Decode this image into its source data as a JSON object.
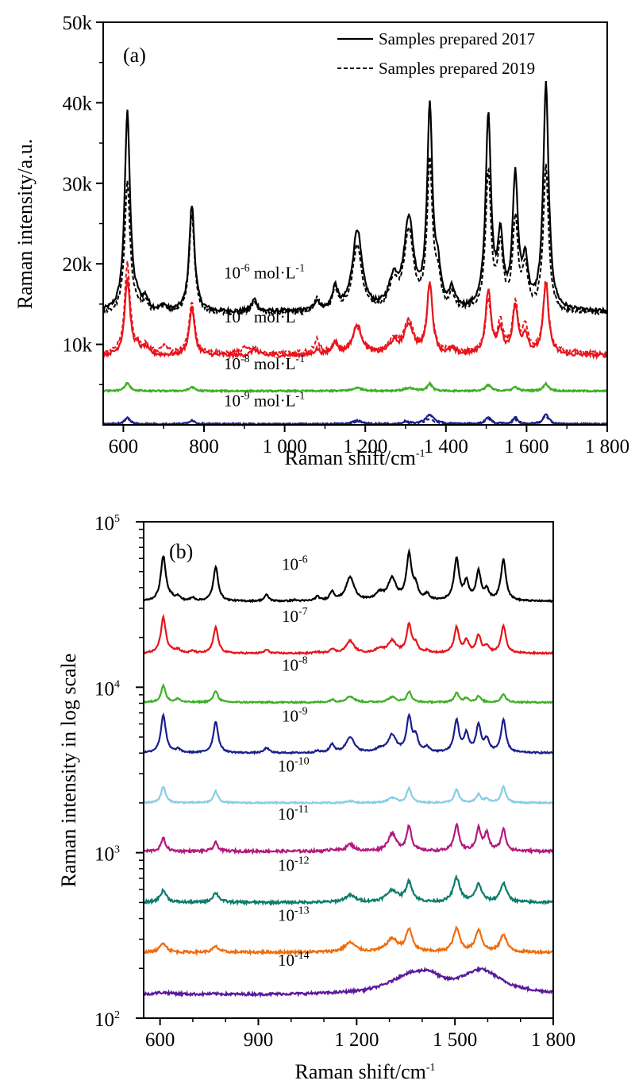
{
  "chart_data": [
    {
      "id": "a",
      "type": "line",
      "panel_label": "(a)",
      "xlabel": "Raman shift/cm",
      "xlabel_sup": "-1",
      "ylabel": "Raman intensity/a.u.",
      "xlim": [
        550,
        1800
      ],
      "ylim": [
        0,
        50000
      ],
      "x_ticks": [
        600,
        800,
        1000,
        1200,
        1400,
        1600,
        1800
      ],
      "x_tick_labels": [
        "600",
        "800",
        "1 000",
        "1 200",
        "1 400",
        "1 600",
        "1 800"
      ],
      "y_ticks": [
        10000,
        20000,
        30000,
        40000,
        50000
      ],
      "y_tick_labels": [
        "10k",
        "20k",
        "30k",
        "40k",
        "50k"
      ],
      "legend": {
        "position": "top-right",
        "entries": [
          {
            "label": "Samples prepared 2017",
            "style": "solid"
          },
          {
            "label": "Samples prepared 2019",
            "style": "dashed"
          }
        ]
      },
      "series": [
        {
          "name": "10-6 mol·L-1",
          "annotation_base": "10",
          "annotation_exp": "-6",
          "annotation_unit": " mol·L",
          "annotation_unit_exp": "-1",
          "color": "#000000",
          "baseline_2017": 14000,
          "baseline_2019": 13800,
          "peaks_2017": [
            [
              610,
              38800
            ],
            [
              635,
              14800
            ],
            [
              655,
              15400
            ],
            [
              700,
              14600
            ],
            [
              770,
              27200
            ],
            [
              925,
              15500
            ],
            [
              1080,
              15200
            ],
            [
              1125,
              16800
            ],
            [
              1180,
              24000
            ],
            [
              1270,
              17500
            ],
            [
              1308,
              25000
            ],
            [
              1360,
              38500
            ],
            [
              1380,
              18000
            ],
            [
              1415,
              16200
            ],
            [
              1505,
              37800
            ],
            [
              1535,
              22500
            ],
            [
              1572,
              30200
            ],
            [
              1597,
              19500
            ],
            [
              1648,
              42000
            ]
          ],
          "peaks_2019": [
            [
              610,
              30000
            ],
            [
              635,
              14500
            ],
            [
              655,
              15000
            ],
            [
              700,
              14800
            ],
            [
              770,
              26000
            ],
            [
              925,
              15200
            ],
            [
              1080,
              15500
            ],
            [
              1125,
              16500
            ],
            [
              1180,
              22000
            ],
            [
              1270,
              17000
            ],
            [
              1308,
              23500
            ],
            [
              1360,
              31800
            ],
            [
              1380,
              17500
            ],
            [
              1415,
              15800
            ],
            [
              1505,
              31000
            ],
            [
              1535,
              21500
            ],
            [
              1572,
              25000
            ],
            [
              1597,
              19000
            ],
            [
              1648,
              31800
            ]
          ]
        },
        {
          "name": "10-7 mol·L-1",
          "annotation_base": "10",
          "annotation_exp": "-7",
          "annotation_unit": " mol·L",
          "annotation_unit_exp": "-1",
          "color": "#e8141c",
          "baseline_2017": 8600,
          "baseline_2019": 8900,
          "peaks_2017": [
            [
              610,
              18000
            ],
            [
              635,
              9400
            ],
            [
              655,
              9500
            ],
            [
              770,
              14500
            ],
            [
              925,
              9400
            ],
            [
              1080,
              9300
            ],
            [
              1125,
              10200
            ],
            [
              1180,
              12300
            ],
            [
              1270,
              10000
            ],
            [
              1308,
              12300
            ],
            [
              1360,
              17500
            ],
            [
              1415,
              9200
            ],
            [
              1505,
              16500
            ],
            [
              1535,
              11500
            ],
            [
              1572,
              14500
            ],
            [
              1597,
              11000
            ],
            [
              1648,
              17500
            ]
          ],
          "peaks_2019": [
            [
              610,
              20000
            ],
            [
              635,
              9500
            ],
            [
              655,
              9800
            ],
            [
              700,
              9800
            ],
            [
              770,
              15300
            ],
            [
              900,
              9500
            ],
            [
              925,
              9600
            ],
            [
              1080,
              10500
            ],
            [
              1125,
              10000
            ],
            [
              1180,
              12000
            ],
            [
              1270,
              10500
            ],
            [
              1308,
              12800
            ],
            [
              1360,
              17500
            ],
            [
              1415,
              9600
            ],
            [
              1505,
              15300
            ],
            [
              1535,
              12500
            ],
            [
              1572,
              15000
            ],
            [
              1597,
              12000
            ],
            [
              1648,
              17800
            ]
          ]
        },
        {
          "name": "10-8 mol·L-1",
          "annotation_base": "10",
          "annotation_exp": "-8",
          "annotation_unit": " mol·L",
          "annotation_unit_exp": "-1",
          "color": "#3db025",
          "baseline_2017": 4200,
          "baseline_2019": 4200,
          "peaks_2017": [
            [
              610,
              5200
            ],
            [
              770,
              4700
            ],
            [
              1180,
              4600
            ],
            [
              1308,
              4600
            ],
            [
              1360,
              5100
            ],
            [
              1505,
              5000
            ],
            [
              1572,
              4700
            ],
            [
              1648,
              5100
            ]
          ],
          "peaks_2019": [
            [
              610,
              5100
            ],
            [
              770,
              4700
            ],
            [
              1180,
              4600
            ],
            [
              1308,
              4500
            ],
            [
              1360,
              4900
            ],
            [
              1505,
              4900
            ],
            [
              1572,
              4700
            ],
            [
              1648,
              5000
            ]
          ]
        },
        {
          "name": "10-9 mol·L-1",
          "annotation_base": "10",
          "annotation_exp": "-9",
          "annotation_unit": " mol·L",
          "annotation_unit_exp": "-1",
          "color": "#1a1f8c",
          "baseline_2017": 100,
          "baseline_2019": 100,
          "peaks_2017": [
            [
              610,
              900
            ],
            [
              770,
              600
            ],
            [
              1180,
              500
            ],
            [
              1300,
              400
            ],
            [
              1360,
              1200
            ],
            [
              1505,
              1000
            ],
            [
              1572,
              900
            ],
            [
              1648,
              1400
            ]
          ],
          "peaks_2019": [
            [
              610,
              800
            ],
            [
              770,
              500
            ],
            [
              1180,
              400
            ],
            [
              1300,
              350
            ],
            [
              1360,
              700
            ],
            [
              1505,
              700
            ],
            [
              1572,
              650
            ],
            [
              1648,
              1100
            ]
          ]
        }
      ]
    },
    {
      "id": "b",
      "type": "line",
      "panel_label": "(b)",
      "xlabel": "Raman shift/cm",
      "xlabel_sup": "-1",
      "ylabel": "Raman intensity in log scale",
      "yscale": "log",
      "xlim": [
        550,
        1800
      ],
      "ylim": [
        100,
        100000
      ],
      "x_ticks": [
        600,
        900,
        1200,
        1500,
        1800
      ],
      "x_tick_labels": [
        "600",
        "900",
        "1 200",
        "1 500",
        "1 800"
      ],
      "y_ticks": [
        100,
        1000,
        10000,
        100000
      ],
      "y_tick_labels_base": [
        "10",
        "10",
        "10",
        "10"
      ],
      "y_tick_labels_exp": [
        "2",
        "3",
        "4",
        "5"
      ],
      "series": [
        {
          "label_base": "10",
          "label_exp": "-6",
          "color": "#000000",
          "baseline": 33000,
          "peaks": [
            [
              610,
              62000
            ],
            [
              635,
              34500
            ],
            [
              655,
              35000
            ],
            [
              700,
              34500
            ],
            [
              770,
              53000
            ],
            [
              925,
              36000
            ],
            [
              1010,
              33500
            ],
            [
              1080,
              35000
            ],
            [
              1125,
              37500
            ],
            [
              1180,
              46000
            ],
            [
              1270,
              36500
            ],
            [
              1308,
              45000
            ],
            [
              1360,
              64000
            ],
            [
              1380,
              40000
            ],
            [
              1415,
              36000
            ],
            [
              1505,
              60000
            ],
            [
              1535,
              43000
            ],
            [
              1572,
              50000
            ],
            [
              1597,
              38000
            ],
            [
              1648,
              59000
            ]
          ]
        },
        {
          "label_base": "10",
          "label_exp": "-7",
          "color": "#e8141c",
          "baseline": 16000,
          "peaks": [
            [
              610,
              26500
            ],
            [
              635,
              16500
            ],
            [
              655,
              16800
            ],
            [
              700,
              16500
            ],
            [
              770,
              23000
            ],
            [
              925,
              16800
            ],
            [
              1080,
              16300
            ],
            [
              1125,
              17000
            ],
            [
              1180,
              19000
            ],
            [
              1270,
              17000
            ],
            [
              1308,
              19000
            ],
            [
              1360,
              24000
            ],
            [
              1380,
              18000
            ],
            [
              1415,
              16500
            ],
            [
              1505,
              23000
            ],
            [
              1535,
              19000
            ],
            [
              1572,
              20500
            ],
            [
              1597,
              17500
            ],
            [
              1648,
              23500
            ]
          ]
        },
        {
          "label_base": "10",
          "label_exp": "-8",
          "color": "#3db025",
          "baseline": 8100,
          "peaks": [
            [
              610,
              10200
            ],
            [
              655,
              8500
            ],
            [
              770,
              9500
            ],
            [
              1125,
              8400
            ],
            [
              1180,
              8800
            ],
            [
              1308,
              8700
            ],
            [
              1360,
              9400
            ],
            [
              1505,
              9200
            ],
            [
              1535,
              8600
            ],
            [
              1572,
              8800
            ],
            [
              1648,
              9100
            ]
          ]
        },
        {
          "label_base": "10",
          "label_exp": "-9",
          "color": "#1a1f8c",
          "baseline": 4000,
          "peaks": [
            [
              610,
              6800
            ],
            [
              655,
              4200
            ],
            [
              770,
              6200
            ],
            [
              925,
              4300
            ],
            [
              1080,
              4100
            ],
            [
              1125,
              4500
            ],
            [
              1180,
              5000
            ],
            [
              1270,
              4200
            ],
            [
              1308,
              5100
            ],
            [
              1360,
              6600
            ],
            [
              1380,
              5000
            ],
            [
              1415,
              4300
            ],
            [
              1505,
              6300
            ],
            [
              1535,
              5200
            ],
            [
              1572,
              5900
            ],
            [
              1597,
              4800
            ],
            [
              1648,
              6300
            ]
          ]
        },
        {
          "label_base": "10",
          "label_exp": "-10",
          "color": "#87cde6",
          "baseline": 2000,
          "peaks": [
            [
              610,
              2500
            ],
            [
              770,
              2350
            ],
            [
              1180,
              2050
            ],
            [
              1308,
              2150
            ],
            [
              1360,
              2450
            ],
            [
              1505,
              2400
            ],
            [
              1572,
              2250
            ],
            [
              1597,
              2100
            ],
            [
              1648,
              2500
            ]
          ]
        },
        {
          "label_base": "10",
          "label_exp": "-11",
          "color": "#b3197f",
          "baseline": 1020,
          "peaks": [
            [
              610,
              1220
            ],
            [
              770,
              1150
            ],
            [
              1125,
              1050
            ],
            [
              1180,
              1120
            ],
            [
              1308,
              1300
            ],
            [
              1360,
              1450
            ],
            [
              1505,
              1480
            ],
            [
              1572,
              1400
            ],
            [
              1597,
              1300
            ],
            [
              1648,
              1380
            ]
          ]
        },
        {
          "label_base": "10",
          "label_exp": "-12",
          "color": "#0e7c6c",
          "baseline": 500,
          "peaks": [
            [
              610,
              590
            ],
            [
              770,
              570
            ],
            [
              1180,
              550
            ],
            [
              1308,
              590
            ],
            [
              1360,
              660
            ],
            [
              1505,
              700
            ],
            [
              1572,
              640
            ],
            [
              1648,
              650
            ]
          ]
        },
        {
          "label_base": "10",
          "label_exp": "-13",
          "color": "#ef6d0d",
          "baseline": 250,
          "peaks": [
            [
              610,
              285
            ],
            [
              770,
              270
            ],
            [
              1180,
              285
            ],
            [
              1308,
              300
            ],
            [
              1360,
              340
            ],
            [
              1505,
              345
            ],
            [
              1572,
              340
            ],
            [
              1648,
              320
            ]
          ]
        },
        {
          "label_base": "10",
          "label_exp": "-14",
          "color": "#5b1a9c",
          "baseline": 138,
          "peaks": [
            [
              610,
              142
            ],
            [
              770,
              139
            ],
            [
              1360,
              175
            ],
            [
              1420,
              165
            ],
            [
              1580,
              192
            ]
          ]
        }
      ]
    }
  ]
}
